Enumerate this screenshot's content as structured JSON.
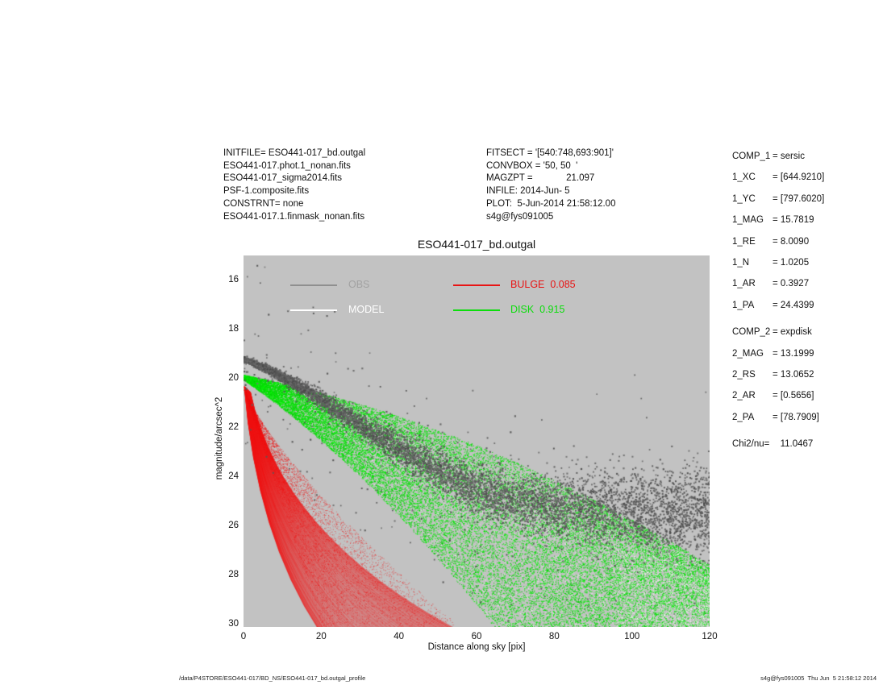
{
  "header_left": {
    "lines": [
      "INITFILE= ESO441-017_bd.outgal",
      "ESO441-017.phot.1_nonan.fits",
      "ESO441-017_sigma2014.fits",
      "PSF-1.composite.fits",
      "CONSTRNT= none",
      "ESO441-017.1.finmask_nonan.fits"
    ]
  },
  "header_right": {
    "lines": [
      "FITSECT = '[540:748,693:901]'",
      "CONVBOX = '50, 50  '",
      "MAGZPT =             21.097",
      "INFILE: 2014-Jun- 5",
      "PLOT:  5-Jun-2014 21:58:12.00",
      "s4g@fys091005"
    ]
  },
  "params_panel": {
    "rows": [
      {
        "name": "COMP_1",
        "value": "= sersic"
      },
      {
        "name": "1_XC",
        "value": "= [644.9210]"
      },
      {
        "name": "1_YC",
        "value": "= [797.6020]"
      },
      {
        "name": "1_MAG",
        "value": "= 15.7819"
      },
      {
        "name": "1_RE",
        "value": "= 8.0090"
      },
      {
        "name": "1_N",
        "value": "= 1.0205"
      },
      {
        "name": "1_AR",
        "value": "= 0.3927"
      },
      {
        "name": "1_PA",
        "value": "= 24.4399"
      },
      {
        "spacer": true
      },
      {
        "name": "COMP_2",
        "value": "= expdisk"
      },
      {
        "name": "2_MAG",
        "value": "= 13.1999"
      },
      {
        "name": "2_RS",
        "value": "= 13.0652"
      },
      {
        "name": "2_AR",
        "value": "= [0.5656]"
      },
      {
        "name": "2_PA",
        "value": "= [78.7909]"
      },
      {
        "spacer": true
      },
      {
        "name": "Chi2/nu=",
        "value": "   11.0467"
      }
    ]
  },
  "footer": {
    "left": "/data/P4STORE/ESO441-017/BD_NS/ESO441-017_bd.outgal_profile",
    "right": "s4g@fys091005  Thu Jun  5 21:58:12 2014"
  },
  "chart_data": {
    "type": "scatter",
    "title": "ESO441-017_bd.outgal",
    "xlabel": "Distance along sky [pix]",
    "ylabel": "magnitude/arcsec^2",
    "xlim": [
      0,
      120
    ],
    "ylim": [
      30.1,
      15.0
    ],
    "y_axis_inverted_magnitudes": true,
    "grid": false,
    "plot_bg": "#c2c2c2",
    "xticks": [
      0,
      20,
      40,
      60,
      80,
      100,
      120
    ],
    "yticks": [
      16,
      18,
      20,
      22,
      24,
      26,
      28,
      30
    ],
    "legend": {
      "position": "top-inside",
      "entries": [
        {
          "label": "OBS",
          "line_color": "#8f8f8f",
          "text_color": "#a2a2a2",
          "col": 0,
          "row": 0
        },
        {
          "label": "MODEL",
          "line_color": "#ffffff",
          "text_color": "#ffffff",
          "col": 0,
          "row": 1
        },
        {
          "label": "BULGE  0.085",
          "line_color": "#e81414",
          "text_color": "#e81414",
          "col": 1,
          "row": 0
        },
        {
          "label": "DISK  0.915",
          "line_color": "#0cdd0c",
          "text_color": "#0cdd0c",
          "col": 1,
          "row": 1
        }
      ]
    },
    "series": {
      "obs": {
        "name": "OBS",
        "color": "#4e4e4e",
        "description": "observed surface-brightness points; dense band flattening to sky level with growing scatter",
        "mean_profile": [
          [
            0,
            19.2
          ],
          [
            6,
            19.6
          ],
          [
            12,
            20.1
          ],
          [
            18,
            20.65
          ],
          [
            24,
            21.25
          ],
          [
            30,
            21.85
          ],
          [
            36,
            22.45
          ],
          [
            42,
            23.0
          ],
          [
            48,
            23.55
          ],
          [
            54,
            24.05
          ],
          [
            60,
            24.5
          ],
          [
            66,
            24.8
          ],
          [
            72,
            25.0
          ],
          [
            80,
            25.15
          ],
          [
            90,
            25.3
          ],
          [
            100,
            25.35
          ],
          [
            110,
            25.4
          ],
          [
            120,
            25.45
          ]
        ],
        "sigma_profile": [
          [
            0,
            0.05
          ],
          [
            12,
            0.12
          ],
          [
            24,
            0.2
          ],
          [
            36,
            0.3
          ],
          [
            48,
            0.4
          ],
          [
            60,
            0.5
          ],
          [
            72,
            0.58
          ],
          [
            84,
            0.66
          ],
          [
            96,
            0.74
          ],
          [
            108,
            0.82
          ],
          [
            120,
            0.92
          ]
        ],
        "n_points": 6800,
        "n_points_inner": 700,
        "outlier_frac": 0.045
      },
      "model": {
        "name": "MODEL",
        "color": "#ffffff",
        "curve": [
          [
            0,
            19.25
          ],
          [
            3,
            19.4
          ],
          [
            6,
            19.6
          ],
          [
            9,
            19.85
          ],
          [
            12,
            20.15
          ],
          [
            15,
            20.45
          ],
          [
            18,
            20.78
          ]
        ],
        "speckle_n": 3000,
        "speckle_corner_n": 900
      },
      "bulge": {
        "name": "BULGE",
        "fraction": 0.085,
        "color": "#ee0f0f",
        "apex_mag": 20.3,
        "lower_envelope_mag_per_pix": 0.48,
        "lower_envelope_x_at_mag30": 19.5,
        "upper_envelope_x_at_mag30": 55,
        "upper_envelope_exponent": 1.3,
        "n_arcs": 160,
        "n_fill_points": 5200
      },
      "disk": {
        "name": "DISK",
        "fraction": 0.915,
        "color": "#00dd00",
        "upper_envelope_poly": [
          19.85,
          0.0312,
          0.000277
        ],
        "lower_envelope_poly": [
          20.05,
          0.1101,
          0.000708
        ],
        "n_points": 26000
      }
    }
  }
}
